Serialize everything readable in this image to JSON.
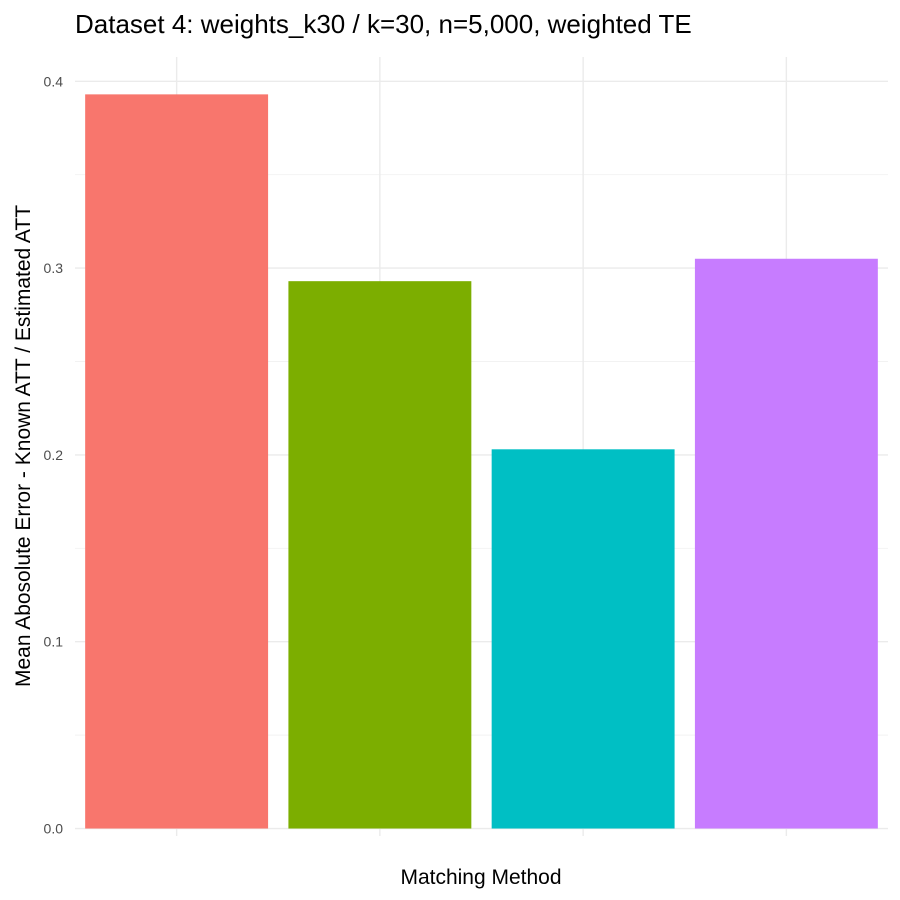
{
  "chart_data": {
    "type": "bar",
    "title": "Dataset 4: weights_k30 / k=30, n=5,000, weighted TE",
    "xlabel": "Matching Method",
    "ylabel": "Mean Abosolute Error - Known ATT / Estimated ATT",
    "categories": [
      "",
      "",
      "",
      ""
    ],
    "values": [
      0.393,
      0.293,
      0.203,
      0.305
    ],
    "colors": [
      "#F8766D",
      "#7CAE00",
      "#00BFC4",
      "#C77CFF"
    ],
    "ylim": [
      -0.004,
      0.413
    ],
    "yticks": [
      0.0,
      0.1,
      0.2,
      0.3,
      0.4
    ],
    "ytick_labels": [
      "0.0",
      "0.1",
      "0.2",
      "0.3",
      "0.4"
    ],
    "grid": true,
    "legend": "none"
  }
}
